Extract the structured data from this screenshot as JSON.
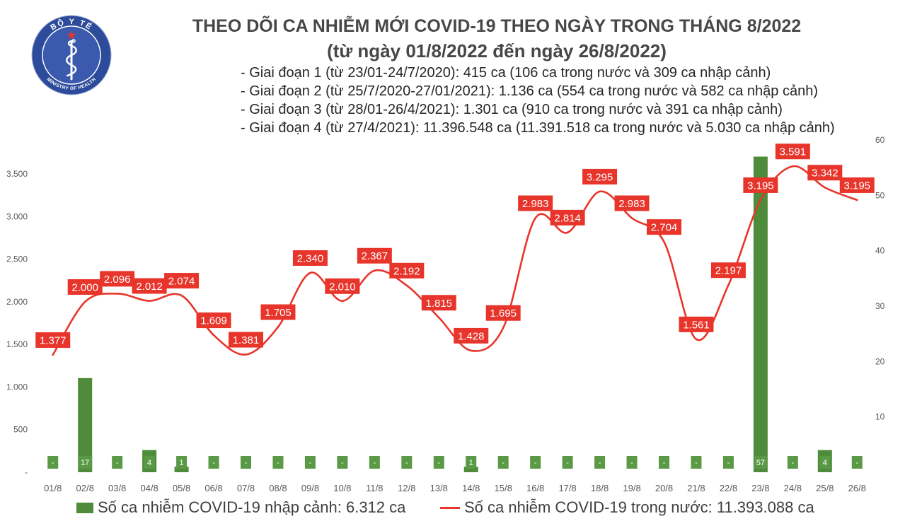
{
  "logo": {
    "top_text": "BỘ Y TẾ",
    "bottom_text": "MINISTRY OF HEALTH",
    "icon": "rod-of-asclepius-icon",
    "colors": {
      "ring": "#2d4b9b",
      "disc": "#3b5aad",
      "star": "#e8352b",
      "emblem": "#ffffff"
    }
  },
  "chart_data": {
    "type": "bar",
    "title": "THEO DÕI CA NHIỄM MỚI COVID-19 THEO NGÀY TRONG THÁNG 8/2022",
    "subtitle": "(từ ngày 01/8/2022 đến ngày 26/8/2022)",
    "annotations": [
      "- Giai đoạn 1 (từ 23/01-24/7/2020): 415 ca (106 ca trong nước và 309 ca nhập cảnh)",
      "- Giai đoạn 2 (từ 25/7/2020-27/01/2021): 1.136 ca (554 ca trong nước và 582 ca nhập cảnh)",
      "- Giai đoạn 3 (từ 28/01-26/4/2021): 1.301 ca (910 ca trong nước và 391 ca nhập cảnh)",
      "- Giai đoạn 4 (từ 27/4/2021): 11.396.548 ca (11.391.518 ca trong nước và 5.030 ca nhập cảnh)"
    ],
    "xlabel": "",
    "ylabel": "",
    "categories": [
      "01/8",
      "02/8",
      "03/8",
      "04/8",
      "05/8",
      "06/8",
      "07/8",
      "08/8",
      "09/8",
      "10/8",
      "11/8",
      "12/8",
      "13/8",
      "14/8",
      "15/8",
      "16/8",
      "17/8",
      "18/8",
      "19/8",
      "20/8",
      "21/8",
      "22/8",
      "23/8",
      "24/8",
      "25/8",
      "26/8"
    ],
    "series": [
      {
        "name": "Số ca nhiễm COVID-19 nhập cảnh: 6.312 ca",
        "type": "bar",
        "axis": "right",
        "color": "#4e8b3a",
        "label_color": "#5a9a46",
        "values": [
          0,
          17,
          0,
          4,
          1,
          0,
          0,
          0,
          0,
          0,
          0,
          0,
          0,
          1,
          0,
          0,
          0,
          0,
          0,
          0,
          0,
          0,
          57,
          0,
          4,
          0
        ],
        "labels": [
          "-",
          "17",
          "-",
          "4",
          "1",
          "-",
          "-",
          "-",
          "-",
          "-",
          "-",
          "-",
          "-",
          "1",
          "-",
          "-",
          "-",
          "-",
          "-",
          "-",
          "-",
          "-",
          "57",
          "-",
          "4",
          "-"
        ]
      },
      {
        "name": "Số ca nhiễm COVID-19 trong nước: 11.393.088 ca",
        "type": "line",
        "axis": "left",
        "smooth": true,
        "color": "#e8352b",
        "values": [
          1377,
          2000,
          2096,
          2012,
          2074,
          1609,
          1381,
          1705,
          2340,
          2010,
          2367,
          2192,
          1815,
          1428,
          1695,
          2983,
          2814,
          3295,
          2983,
          2704,
          1561,
          2197,
          3195,
          3591,
          3342,
          3195
        ],
        "labels": [
          "1.377",
          "2.000",
          "2.096",
          "2.012",
          "2.074",
          "1.609",
          "1.381",
          "1.705",
          "2.340",
          "2.010",
          "2.367",
          "2.192",
          "1.815",
          "1.428",
          "1.695",
          "2.983",
          "2.814",
          "3.295",
          "2.983",
          "2.704",
          "1.561",
          "2.197",
          "3.195",
          "3.591",
          "3.342",
          "3.195"
        ]
      }
    ],
    "y_left": {
      "ylim": [
        0,
        3900
      ],
      "ticks": [
        0,
        500,
        1000,
        1500,
        2000,
        2500,
        3000,
        3500
      ],
      "tick_labels": [
        "-",
        "500",
        "1.000",
        "1.500",
        "2.000",
        "2.500",
        "3.000",
        "3.500"
      ]
    },
    "y_right": {
      "ylim": [
        0,
        60
      ],
      "ticks": [
        10,
        20,
        30,
        40,
        50,
        60
      ],
      "tick_labels": [
        "10",
        "20",
        "30",
        "40",
        "50",
        "60"
      ]
    },
    "grid": false,
    "legend_position": "bottom"
  }
}
